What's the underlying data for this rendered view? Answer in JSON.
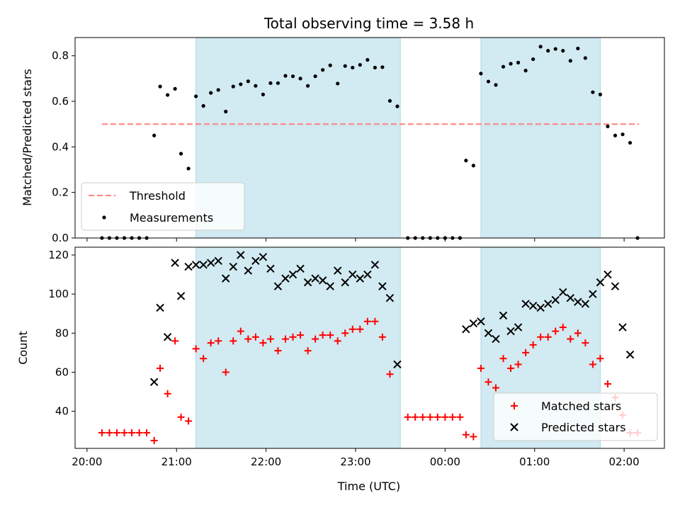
{
  "chart_data": [
    {
      "type": "scatter",
      "title": "Total observing time = 3.58 h",
      "xlabel": "",
      "ylabel": "Matched/Predicted stars",
      "ylim": [
        0,
        0.88
      ],
      "yticks": [
        "0.0",
        "0.2",
        "0.4",
        "0.6",
        "0.8"
      ],
      "threshold": {
        "name": "Threshold",
        "value": 0.5,
        "x_start": "20:10",
        "x_end": "02:10",
        "color": "#ff8080"
      },
      "legend": {
        "position": "lower-left",
        "entries": [
          "Threshold",
          "Measurements"
        ]
      },
      "shaded_intervals": [
        [
          "21:13",
          "23:30"
        ],
        [
          "00:24",
          "01:44"
        ]
      ],
      "series": [
        {
          "name": "Measurements",
          "color": "#000000",
          "points": [
            [
              "20:10",
              0.0
            ],
            [
              "20:15",
              0.0
            ],
            [
              "20:20",
              0.0
            ],
            [
              "20:25",
              0.0
            ],
            [
              "20:30",
              0.0
            ],
            [
              "20:35",
              0.0
            ],
            [
              "20:40",
              0.0
            ],
            [
              "20:45",
              0.45
            ],
            [
              "20:49",
              0.665
            ],
            [
              "20:54",
              0.628
            ],
            [
              "20:59",
              0.655
            ],
            [
              "21:03",
              0.37
            ],
            [
              "21:08",
              0.305
            ],
            [
              "21:13",
              0.622
            ],
            [
              "21:18",
              0.58
            ],
            [
              "21:23",
              0.637
            ],
            [
              "21:28",
              0.65
            ],
            [
              "21:33",
              0.555
            ],
            [
              "21:38",
              0.665
            ],
            [
              "21:43",
              0.675
            ],
            [
              "21:48",
              0.688
            ],
            [
              "21:53",
              0.668
            ],
            [
              "21:58",
              0.63
            ],
            [
              "22:03",
              0.68
            ],
            [
              "22:08",
              0.68
            ],
            [
              "22:13",
              0.712
            ],
            [
              "22:18",
              0.71
            ],
            [
              "22:23",
              0.7
            ],
            [
              "22:28",
              0.668
            ],
            [
              "22:33",
              0.71
            ],
            [
              "22:38",
              0.738
            ],
            [
              "22:43",
              0.758
            ],
            [
              "22:48",
              0.678
            ],
            [
              "22:53",
              0.755
            ],
            [
              "22:58",
              0.748
            ],
            [
              "23:03",
              0.76
            ],
            [
              "23:08",
              0.782
            ],
            [
              "23:13",
              0.748
            ],
            [
              "23:18",
              0.75
            ],
            [
              "23:23",
              0.602
            ],
            [
              "23:28",
              0.578
            ],
            [
              "23:35",
              0.0
            ],
            [
              "23:40",
              0.0
            ],
            [
              "23:45",
              0.0
            ],
            [
              "23:50",
              0.0
            ],
            [
              "23:55",
              0.0
            ],
            [
              "00:00",
              0.0
            ],
            [
              "00:05",
              0.0
            ],
            [
              "00:10",
              0.0
            ],
            [
              "00:14",
              0.34
            ],
            [
              "00:19",
              0.318
            ],
            [
              "00:24",
              0.722
            ],
            [
              "00:29",
              0.687
            ],
            [
              "00:34",
              0.672
            ],
            [
              "00:39",
              0.752
            ],
            [
              "00:44",
              0.765
            ],
            [
              "00:49",
              0.77
            ],
            [
              "00:54",
              0.735
            ],
            [
              "00:59",
              0.785
            ],
            [
              "01:04",
              0.84
            ],
            [
              "01:09",
              0.822
            ],
            [
              "01:14",
              0.83
            ],
            [
              "01:19",
              0.822
            ],
            [
              "01:24",
              0.778
            ],
            [
              "01:29",
              0.832
            ],
            [
              "01:34",
              0.79
            ],
            [
              "01:39",
              0.64
            ],
            [
              "01:44",
              0.63
            ],
            [
              "01:49",
              0.49
            ],
            [
              "01:54",
              0.45
            ],
            [
              "01:59",
              0.455
            ],
            [
              "02:04",
              0.418
            ],
            [
              "02:09",
              0.0
            ]
          ]
        }
      ]
    },
    {
      "type": "scatter",
      "title": "",
      "xlabel": "Time (UTC)",
      "ylabel": "Count",
      "ylim": [
        21,
        124
      ],
      "yticks": [
        "40",
        "60",
        "80",
        "100",
        "120"
      ],
      "xticks": [
        "20:00",
        "21:00",
        "22:00",
        "23:00",
        "00:00",
        "01:00",
        "02:00"
      ],
      "x_range": [
        "19:52",
        "02:27"
      ],
      "legend": {
        "position": "lower-right",
        "entries": [
          "Matched stars",
          "Predicted stars"
        ]
      },
      "shaded_intervals": [
        [
          "21:13",
          "23:30"
        ],
        [
          "00:24",
          "01:44"
        ]
      ],
      "series": [
        {
          "name": "Matched stars",
          "marker": "plus",
          "color": "#ff0000",
          "points": [
            [
              "20:10",
              29
            ],
            [
              "20:15",
              29
            ],
            [
              "20:20",
              29
            ],
            [
              "20:25",
              29
            ],
            [
              "20:30",
              29
            ],
            [
              "20:35",
              29
            ],
            [
              "20:40",
              29
            ],
            [
              "20:45",
              25
            ],
            [
              "20:49",
              62
            ],
            [
              "20:54",
              49
            ],
            [
              "20:59",
              76
            ],
            [
              "21:03",
              37
            ],
            [
              "21:08",
              35
            ],
            [
              "21:13",
              72
            ],
            [
              "21:18",
              67
            ],
            [
              "21:23",
              75
            ],
            [
              "21:28",
              76
            ],
            [
              "21:33",
              60
            ],
            [
              "21:38",
              76
            ],
            [
              "21:43",
              81
            ],
            [
              "21:48",
              77
            ],
            [
              "21:53",
              78
            ],
            [
              "21:58",
              75
            ],
            [
              "22:03",
              77
            ],
            [
              "22:08",
              71
            ],
            [
              "22:13",
              77
            ],
            [
              "22:18",
              78
            ],
            [
              "22:23",
              79
            ],
            [
              "22:28",
              71
            ],
            [
              "22:33",
              77
            ],
            [
              "22:38",
              79
            ],
            [
              "22:43",
              79
            ],
            [
              "22:48",
              76
            ],
            [
              "22:53",
              80
            ],
            [
              "22:58",
              82
            ],
            [
              "23:03",
              82
            ],
            [
              "23:08",
              86
            ],
            [
              "23:13",
              86
            ],
            [
              "23:18",
              78
            ],
            [
              "23:23",
              59
            ],
            [
              "23:35",
              37
            ],
            [
              "23:40",
              37
            ],
            [
              "23:45",
              37
            ],
            [
              "23:50",
              37
            ],
            [
              "23:55",
              37
            ],
            [
              "00:00",
              37
            ],
            [
              "00:05",
              37
            ],
            [
              "00:10",
              37
            ],
            [
              "00:14",
              28
            ],
            [
              "00:19",
              27
            ],
            [
              "00:24",
              62
            ],
            [
              "00:29",
              55
            ],
            [
              "00:34",
              52
            ],
            [
              "00:39",
              67
            ],
            [
              "00:44",
              62
            ],
            [
              "00:49",
              64
            ],
            [
              "00:54",
              70
            ],
            [
              "00:59",
              74
            ],
            [
              "01:04",
              78
            ],
            [
              "01:09",
              78
            ],
            [
              "01:14",
              81
            ],
            [
              "01:19",
              83
            ],
            [
              "01:24",
              77
            ],
            [
              "01:29",
              80
            ],
            [
              "01:34",
              75
            ],
            [
              "01:39",
              64
            ],
            [
              "01:44",
              67
            ],
            [
              "01:49",
              54
            ],
            [
              "01:54",
              47
            ],
            [
              "01:59",
              38
            ],
            [
              "02:04",
              29
            ],
            [
              "02:09",
              29
            ]
          ]
        },
        {
          "name": "Predicted stars",
          "marker": "x",
          "color": "#000000",
          "points": [
            [
              "20:45",
              55
            ],
            [
              "20:49",
              93
            ],
            [
              "20:54",
              78
            ],
            [
              "20:59",
              116
            ],
            [
              "21:03",
              99
            ],
            [
              "21:08",
              114
            ],
            [
              "21:13",
              115
            ],
            [
              "21:18",
              115
            ],
            [
              "21:23",
              116
            ],
            [
              "21:28",
              117
            ],
            [
              "21:33",
              108
            ],
            [
              "21:38",
              114
            ],
            [
              "21:43",
              120
            ],
            [
              "21:48",
              112
            ],
            [
              "21:53",
              117
            ],
            [
              "21:58",
              119
            ],
            [
              "22:03",
              113
            ],
            [
              "22:08",
              104
            ],
            [
              "22:13",
              108
            ],
            [
              "22:18",
              110
            ],
            [
              "22:23",
              113
            ],
            [
              "22:28",
              106
            ],
            [
              "22:33",
              108
            ],
            [
              "22:38",
              107
            ],
            [
              "22:43",
              104
            ],
            [
              "22:48",
              112
            ],
            [
              "22:53",
              106
            ],
            [
              "22:58",
              110
            ],
            [
              "23:03",
              108
            ],
            [
              "23:08",
              110
            ],
            [
              "23:13",
              115
            ],
            [
              "23:18",
              104
            ],
            [
              "23:23",
              98
            ],
            [
              "23:28",
              64
            ],
            [
              "00:14",
              82
            ],
            [
              "00:19",
              85
            ],
            [
              "00:24",
              86
            ],
            [
              "00:29",
              80
            ],
            [
              "00:34",
              77
            ],
            [
              "00:39",
              89
            ],
            [
              "00:44",
              81
            ],
            [
              "00:49",
              83
            ],
            [
              "00:54",
              95
            ],
            [
              "00:59",
              94
            ],
            [
              "01:04",
              93
            ],
            [
              "01:09",
              95
            ],
            [
              "01:14",
              97
            ],
            [
              "01:19",
              101
            ],
            [
              "01:24",
              98
            ],
            [
              "01:29",
              96
            ],
            [
              "01:34",
              95
            ],
            [
              "01:39",
              100
            ],
            [
              "01:44",
              106
            ],
            [
              "01:49",
              110
            ],
            [
              "01:54",
              104
            ],
            [
              "01:59",
              83
            ],
            [
              "02:04",
              69
            ]
          ]
        }
      ]
    }
  ],
  "colors": {
    "shade": "#add8e6",
    "threshold": "#ff8080",
    "matched": "#ff0000",
    "predicted": "#000000"
  }
}
